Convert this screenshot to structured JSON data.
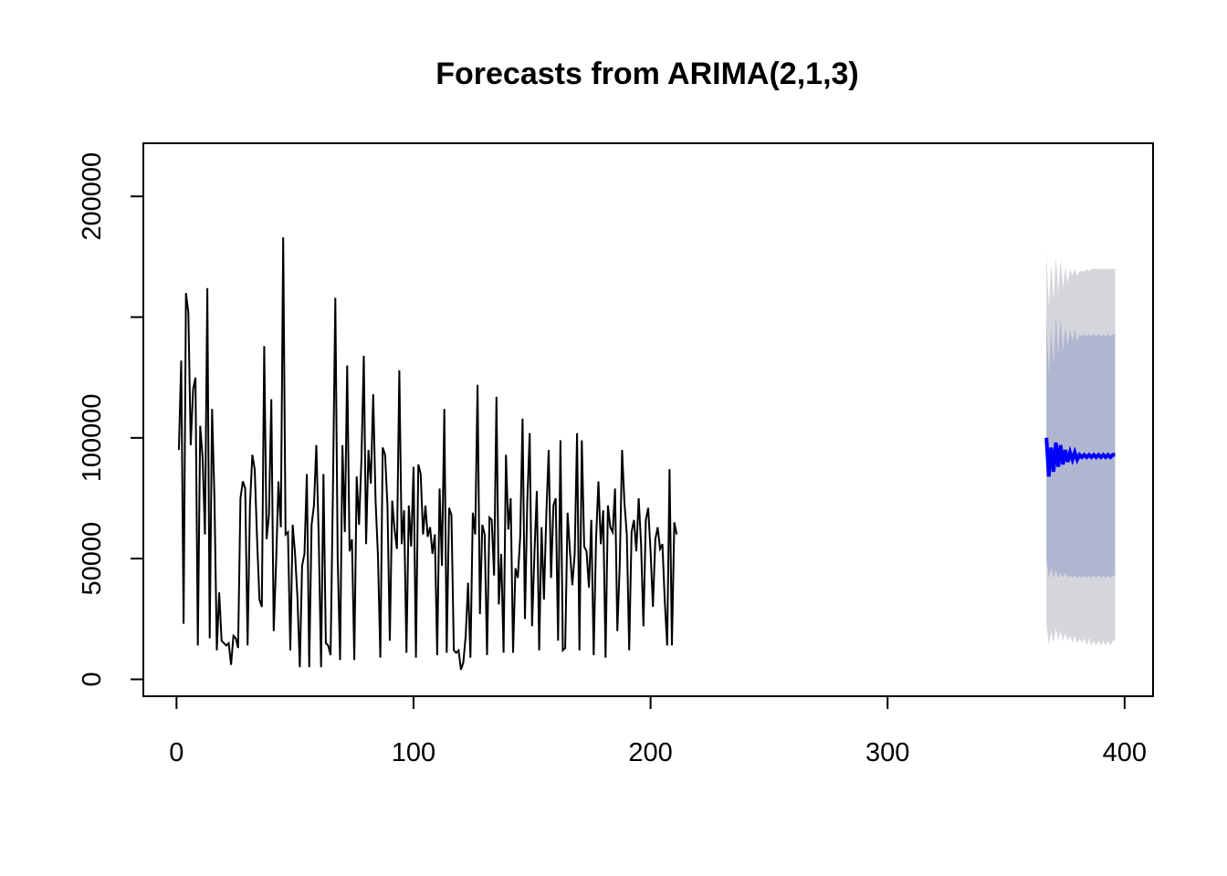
{
  "chart_data": {
    "type": "line",
    "title": "Forecasts from ARIMA(2,1,3)",
    "xlabel": "",
    "ylabel": "",
    "xlim": [
      -14,
      412
    ],
    "ylim": [
      -7000,
      222000
    ],
    "x_ticks": [
      0,
      100,
      200,
      300,
      400
    ],
    "y_ticks": [
      0,
      50000,
      100000,
      150000,
      200000
    ],
    "x_tick_labels": [
      "0",
      "100",
      "200",
      "300",
      "400"
    ],
    "y_tick_labels": [
      "0",
      "50000",
      "100000",
      "",
      "200000"
    ],
    "grid": false,
    "legend": "none",
    "colors": {
      "history": "#000000",
      "forecast": "#0000ff",
      "band80": "#b0b6d0",
      "band95": "#d5d6dc",
      "frame": "#000000"
    },
    "history": {
      "x_start": 1,
      "values": [
        95000,
        132000,
        23000,
        160000,
        152000,
        97000,
        120000,
        125000,
        14000,
        105000,
        92000,
        60000,
        162000,
        17000,
        112000,
        75000,
        12000,
        36000,
        16000,
        15000,
        14000,
        15000,
        6000,
        18000,
        17000,
        13000,
        75000,
        82000,
        79000,
        14000,
        72000,
        93000,
        87000,
        58000,
        33000,
        30000,
        138000,
        58000,
        68000,
        116000,
        20000,
        48000,
        82000,
        63000,
        183000,
        60000,
        61000,
        12000,
        64000,
        52000,
        34000,
        5000,
        47000,
        52000,
        85000,
        5000,
        64000,
        72000,
        97000,
        59000,
        5000,
        85000,
        15000,
        14000,
        10000,
        79000,
        158000,
        50000,
        8000,
        97000,
        61000,
        130000,
        53000,
        58000,
        8000,
        84000,
        64000,
        91000,
        134000,
        56000,
        95000,
        81000,
        118000,
        74000,
        51000,
        9000,
        96000,
        93000,
        72000,
        16000,
        74000,
        62000,
        54000,
        128000,
        56000,
        70000,
        11000,
        72000,
        55000,
        88000,
        9000,
        89000,
        85000,
        60000,
        72000,
        59000,
        63000,
        52000,
        60000,
        10000,
        79000,
        47000,
        112000,
        11000,
        71000,
        68000,
        12000,
        11000,
        12000,
        4000,
        7000,
        18000,
        40000,
        9000,
        69000,
        60000,
        122000,
        27000,
        64000,
        60000,
        10000,
        67000,
        66000,
        43000,
        117000,
        31000,
        52000,
        11000,
        93000,
        62000,
        75000,
        11000,
        46000,
        42000,
        59000,
        108000,
        25000,
        74000,
        102000,
        22000,
        52000,
        78000,
        12000,
        63000,
        33000,
        68000,
        95000,
        42000,
        72000,
        75000,
        16000,
        99000,
        12000,
        13000,
        69000,
        53000,
        39000,
        52000,
        102000,
        12000,
        99000,
        55000,
        53000,
        38000,
        66000,
        10000,
        58000,
        82000,
        56000,
        70000,
        9000,
        72000,
        63000,
        61000,
        79000,
        20000,
        47000,
        95000,
        73000,
        60000,
        12000,
        61000,
        66000,
        53000,
        75000,
        56000,
        22000,
        66000,
        71000,
        53000,
        30000,
        58000,
        63000,
        54000,
        56000,
        32000,
        14000,
        87000,
        14000,
        65000,
        60000
      ],
      "_note": ""
    },
    "forecast": {
      "x_start": 367,
      "values": [
        100000,
        84000,
        96000,
        86000,
        98000,
        88000,
        97000,
        89000,
        95000,
        90000,
        94000,
        91000,
        94000,
        91000,
        93000,
        92000,
        93000,
        92000,
        93000,
        92000,
        93000,
        92000,
        93000,
        92000,
        93000,
        92000,
        93000,
        92000,
        93000,
        93000
      ]
    },
    "lo80": [
      50000,
      42000,
      46000,
      42000,
      45000,
      42000,
      44000,
      42000,
      44000,
      42000,
      43000,
      42000,
      43000,
      42000,
      43000,
      42000,
      43000,
      42000,
      43000,
      42000,
      43000,
      42000,
      43000,
      42000,
      43000,
      42000,
      43000,
      42000,
      43000,
      43000
    ],
    "hi80": [
      150000,
      126000,
      146000,
      130000,
      151000,
      134000,
      150000,
      136000,
      146000,
      138000,
      145000,
      140000,
      145000,
      140000,
      143000,
      142000,
      143000,
      142000,
      143000,
      142000,
      143000,
      142000,
      143000,
      142000,
      143000,
      142000,
      143000,
      142000,
      143000,
      143000
    ],
    "lo95": [
      23000,
      14000,
      20000,
      15000,
      21000,
      16000,
      20000,
      16000,
      19000,
      16000,
      18000,
      15000,
      18000,
      15000,
      17000,
      15000,
      17000,
      14000,
      17000,
      14000,
      16000,
      14000,
      16000,
      14000,
      16000,
      14000,
      16000,
      14000,
      16000,
      16000
    ],
    "hi95": [
      177000,
      154000,
      172000,
      157000,
      175000,
      160000,
      174000,
      162000,
      171000,
      164000,
      170000,
      167000,
      170000,
      167000,
      169000,
      169000,
      169000,
      170000,
      169000,
      170000,
      170000,
      170000,
      170000,
      170000,
      170000,
      170000,
      170000,
      170000,
      170000,
      170000
    ]
  }
}
